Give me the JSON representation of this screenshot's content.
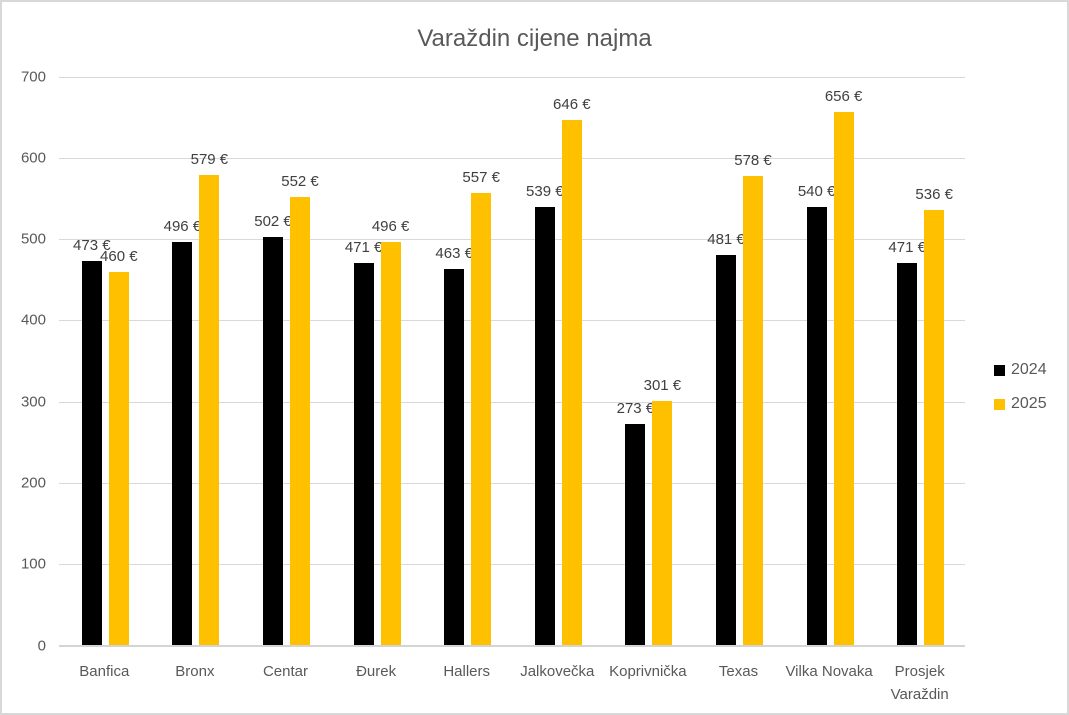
{
  "chart_data": {
    "type": "bar",
    "title": "Varaždin cijene najma",
    "categories": [
      "Banfica",
      "Bronx",
      "Centar",
      "Đurek",
      "Hallers",
      "Jalkovečka",
      "Koprivnička",
      "Texas",
      "Vilka Novaka",
      "Prosjek Varaždin"
    ],
    "series": [
      {
        "name": "2024",
        "color": "#000000",
        "values": [
          473,
          496,
          502,
          471,
          463,
          539,
          273,
          481,
          540,
          471
        ]
      },
      {
        "name": "2025",
        "color": "#FFC000",
        "values": [
          460,
          579,
          552,
          496,
          557,
          646,
          301,
          578,
          656,
          536
        ]
      }
    ],
    "ylim": [
      0,
      700
    ],
    "yticks": [
      0,
      100,
      200,
      300,
      400,
      500,
      600,
      700
    ],
    "data_label_suffix": " €",
    "legend_position": "right",
    "legend_labels": [
      "2024",
      "2025"
    ],
    "grid": true
  },
  "styles": {
    "background": "#FFFFFF",
    "border_color": "#D8D8D8",
    "grid_color": "#D9D9D9",
    "axis_text_color": "#595959",
    "data_label_color": "#404040",
    "title_color": "#595959",
    "series_colors": {
      "2024": "#000000",
      "2025": "#FFC000"
    }
  }
}
